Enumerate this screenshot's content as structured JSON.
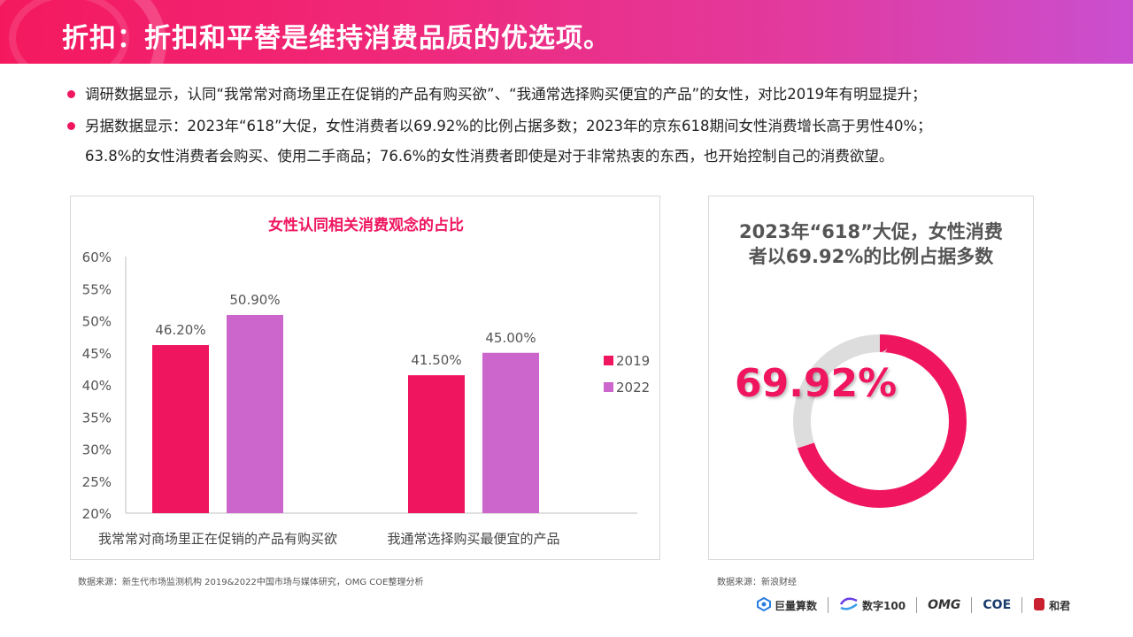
{
  "header": {
    "title": "折扣：折扣和平替是维持消费品质的优选项。"
  },
  "bullets": [
    {
      "lines": [
        "调研数据显示，认同“我常常对商场里正在促销的产品有购买欲”、“我通常选择购买便宜的产品”的女性，对比2019年有明显提升；"
      ]
    },
    {
      "lines": [
        "另据数据显示：2023年“618”大促，女性消费者以69.92%的比例占据多数；2023年的京东618期间女性消费增长高于男性40%；",
        "63.8%的女性消费者会购买、使用二手商品；76.6%的女性消费者即使是对于非常热衷的东西，也开始控制自己的消费欲望。"
      ]
    }
  ],
  "chart_data": [
    {
      "type": "bar",
      "title": "女性认同相关消费观念的占比",
      "categories": [
        "我常常对商场里正在促销的产品有购买欲",
        "我通常选择购买最便宜的产品"
      ],
      "series": [
        {
          "name": "2019",
          "values": [
            46.2,
            41.5
          ],
          "labels": [
            "46.20%",
            "41.50%"
          ],
          "color": "#f0155f"
        },
        {
          "name": "2022",
          "values": [
            50.9,
            45.0
          ],
          "labels": [
            "50.90%",
            "45.00%"
          ],
          "color": "#cc66cc"
        }
      ],
      "yticks": [
        "60%",
        "55%",
        "50%",
        "45%",
        "40%",
        "35%",
        "30%",
        "25%",
        "20%"
      ],
      "ylim": [
        20,
        60
      ],
      "legend": "right",
      "grid": false
    },
    {
      "type": "pie",
      "title": "2023年“618”大促，女性消费者以69.92%的比例占据多数",
      "values": [
        69.92,
        30.08
      ],
      "colors": [
        "#f0155f",
        "#dddddd"
      ],
      "center_label": "69.92%"
    }
  ],
  "right_panel": {
    "title_line1": "2023年“618”大促，女性消费",
    "title_line2": "者以69.92%的比例占据多数",
    "big_value": "69.92%"
  },
  "sources": {
    "left": "数据来源：新生代市场监测机构 2019&2022中国市场与媒体研究，OMG COE整理分析",
    "right": "数据来源：新浪财经"
  },
  "logos": {
    "juliang": "巨量算数",
    "shuzi": "数字100",
    "omg": "OMG",
    "coe": "COE",
    "hejun": "和君"
  },
  "colors": {
    "accent": "#f0155f",
    "series2022": "#cc66cc",
    "donut_rest": "#dddddd"
  }
}
